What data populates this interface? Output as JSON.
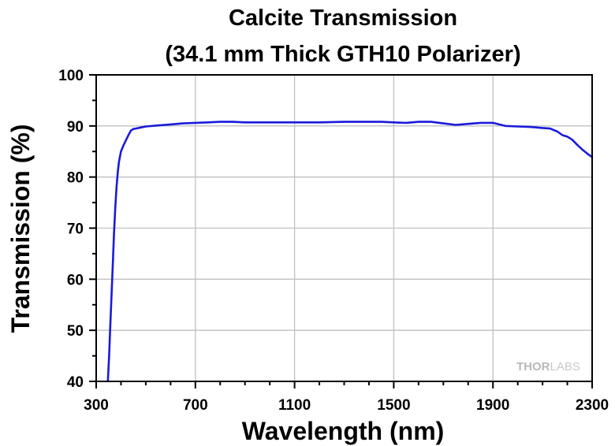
{
  "chart_data": {
    "type": "line",
    "title": [
      "Calcite Transmission",
      "(34.1 mm Thick GTH10 Polarizer)"
    ],
    "xlabel": "Wavelength (nm)",
    "ylabel": "Transmission (%)",
    "xlim": [
      300,
      2300
    ],
    "ylim": [
      40,
      100
    ],
    "x_ticks": [
      300,
      700,
      1100,
      1500,
      1900,
      2300
    ],
    "x_minor_step": 100,
    "y_ticks": [
      40,
      50,
      60,
      70,
      80,
      90,
      100
    ],
    "y_minor_step": 5,
    "grid": true,
    "legend": "none",
    "colors": {
      "line": "#1a1adb",
      "grid": "#c0c0c0",
      "axis": "#000000"
    },
    "watermark": {
      "part1": "THOR",
      "part2": "LABS"
    },
    "series": [
      {
        "x": [
          347,
          352,
          357,
          362,
          367,
          372,
          377,
          382,
          387,
          392,
          400,
          410,
          420,
          430,
          440,
          450,
          460,
          480,
          500,
          550,
          600,
          650,
          700,
          750,
          800,
          850,
          900,
          1000,
          1100,
          1200,
          1300,
          1400,
          1450,
          1500,
          1550,
          1600,
          1650,
          1700,
          1750,
          1800,
          1850,
          1900,
          1950,
          2000,
          2050,
          2100,
          2130,
          2160,
          2180,
          2200,
          2220,
          2240,
          2260,
          2280,
          2300
        ],
        "y": [
          40,
          45,
          51,
          57,
          63,
          69,
          74,
          78,
          81,
          83,
          85,
          86.2,
          87.2,
          88.2,
          89.1,
          89.4,
          89.5,
          89.7,
          89.9,
          90.1,
          90.3,
          90.5,
          90.6,
          90.7,
          90.8,
          90.8,
          90.7,
          90.7,
          90.7,
          90.7,
          90.8,
          90.8,
          90.8,
          90.7,
          90.6,
          90.8,
          90.8,
          90.5,
          90.2,
          90.4,
          90.6,
          90.6,
          90.0,
          89.9,
          89.8,
          89.6,
          89.5,
          88.9,
          88.2,
          87.9,
          87.3,
          86.3,
          85.4,
          84.6,
          83.9
        ]
      }
    ]
  }
}
